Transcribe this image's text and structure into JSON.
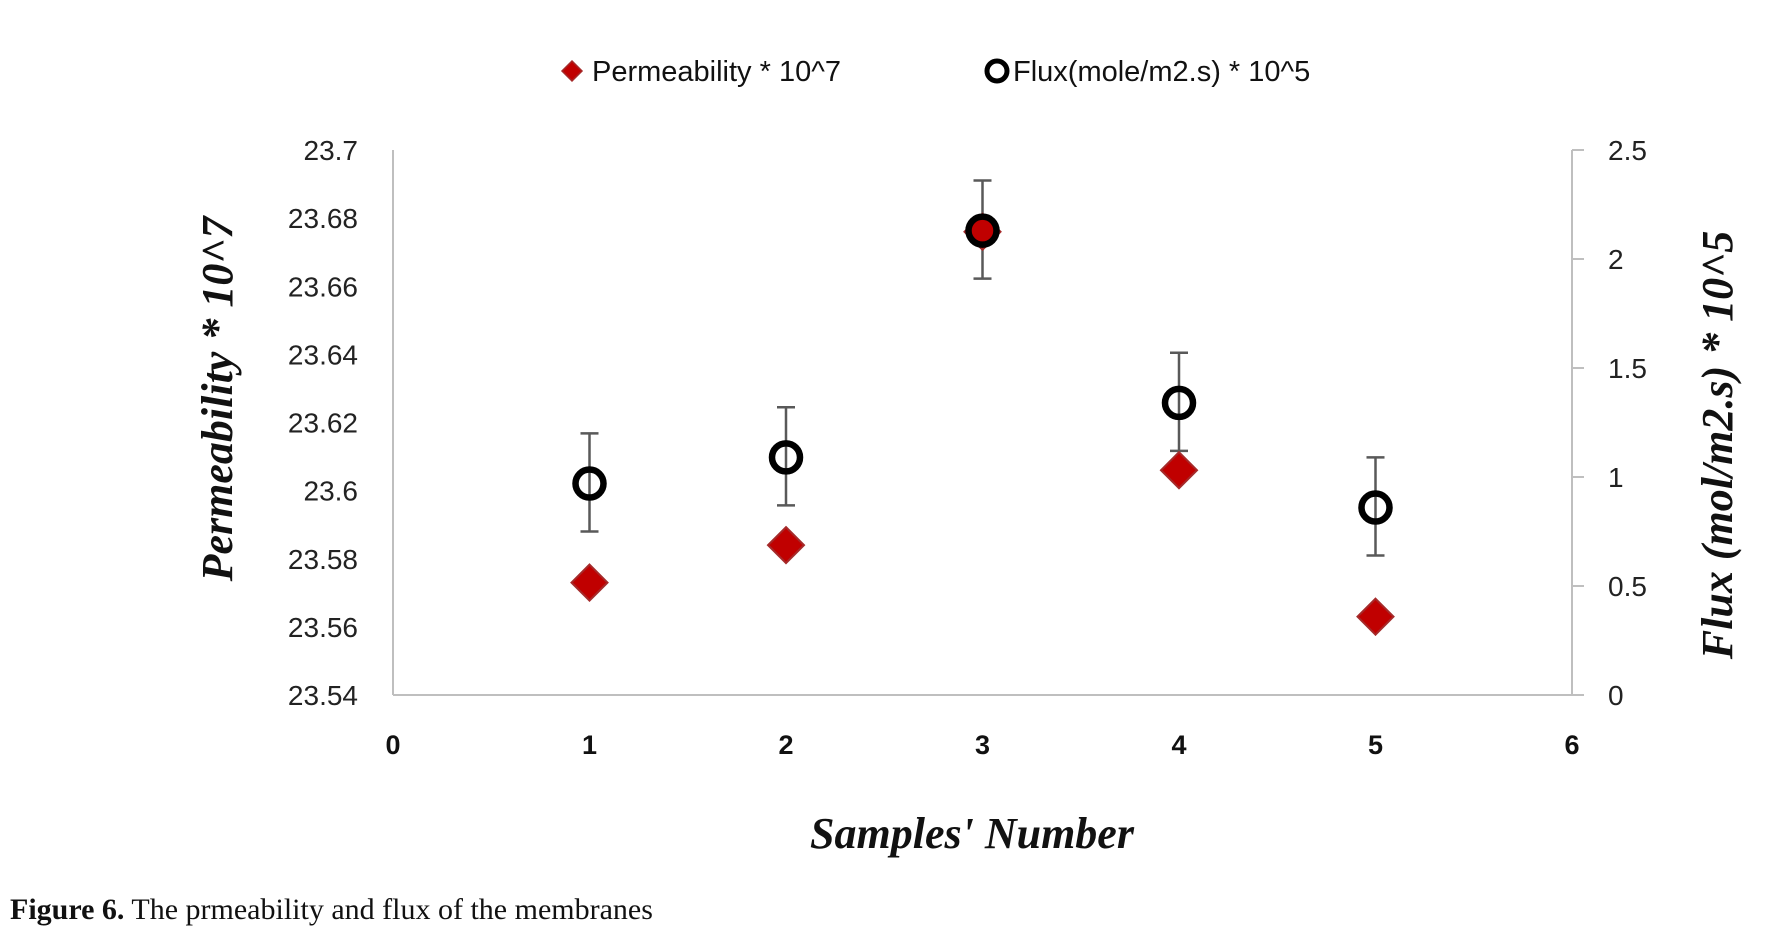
{
  "chart_data": {
    "type": "scatter",
    "xlabel": "Samples'  Number",
    "ylabel_left": "Permeability * 10^7",
    "ylabel_right": "Flux (mol/m2.s) * 10^5",
    "xlim": [
      0,
      6
    ],
    "xticks": [
      "0",
      "1",
      "2",
      "3",
      "4",
      "5",
      "6"
    ],
    "ylim_left": [
      23.54,
      23.7
    ],
    "yticks_left": [
      "23.54",
      "23.56",
      "23.58",
      "23.6",
      "23.62",
      "23.64",
      "23.66",
      "23.68",
      "23.7"
    ],
    "ylim_right": [
      0,
      2.5
    ],
    "yticks_right": [
      "0",
      "0.5",
      "1",
      "1.5",
      "2",
      "2.5"
    ],
    "grid": false,
    "legend_position": "top",
    "series": [
      {
        "name": "Permeability * 10^7",
        "axis": "left",
        "marker": "diamond",
        "color": "#c00000",
        "x": [
          1,
          2,
          3,
          4,
          5
        ],
        "y": [
          23.573,
          23.584,
          23.676,
          23.606,
          23.563
        ]
      },
      {
        "name": "Flux(mole/m2.s) * 10^5",
        "axis": "right",
        "marker": "circle-open",
        "color": "#000000",
        "x": [
          1,
          2,
          3,
          4,
          5
        ],
        "y": [
          0.97,
          1.09,
          2.13,
          1.34,
          0.86
        ],
        "error_low": [
          0.75,
          0.87,
          1.91,
          1.12,
          0.64
        ],
        "error_high": [
          1.2,
          1.32,
          2.36,
          1.57,
          1.09
        ]
      }
    ]
  },
  "caption": {
    "label": "Figure 6.",
    "text": " The prmeability and flux of the membranes"
  }
}
